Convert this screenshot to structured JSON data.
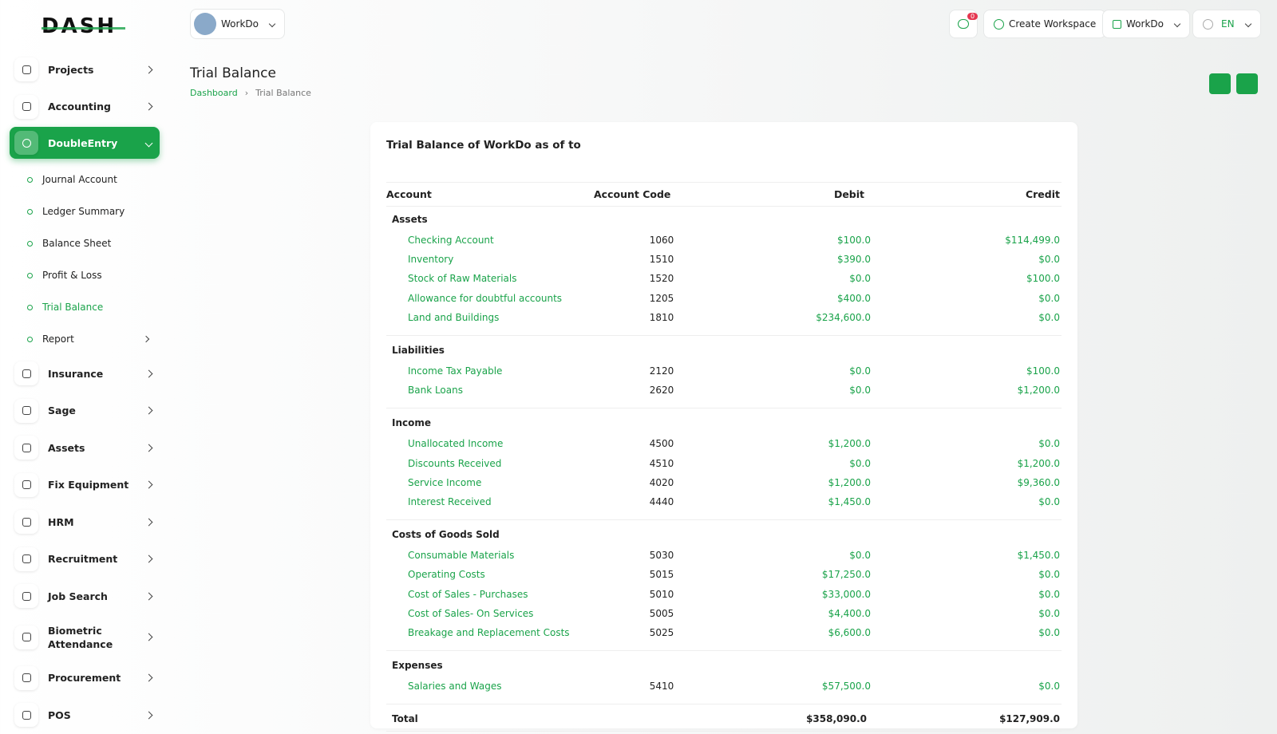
{
  "brand": "DASH",
  "header": {
    "workspace": "WorkDo",
    "notifications": "0",
    "create_workspace": "Create Workspace",
    "user": "WorkDo",
    "language": "EN"
  },
  "sidebar": {
    "items": [
      {
        "label": "Projects"
      },
      {
        "label": "Accounting"
      },
      {
        "label": "DoubleEntry",
        "children": [
          "Journal Account",
          "Ledger Summary",
          "Balance Sheet",
          "Profit & Loss",
          "Trial Balance",
          "Report"
        ]
      },
      {
        "label": "Insurance"
      },
      {
        "label": "Sage"
      },
      {
        "label": "Assets"
      },
      {
        "label": "Fix Equipment"
      },
      {
        "label": "HRM"
      },
      {
        "label": "Recruitment"
      },
      {
        "label": "Job Search"
      },
      {
        "label": "Biometric Attendance"
      },
      {
        "label": "Procurement"
      },
      {
        "label": "POS"
      }
    ]
  },
  "page": {
    "title": "Trial Balance",
    "breadcrumb": [
      "Dashboard",
      "Trial Balance"
    ]
  },
  "card": {
    "title": "Trial Balance of WorkDo as of to",
    "table": {
      "headers": [
        "Account",
        "Account Code",
        "Debit",
        "Credit"
      ],
      "groups": [
        {
          "name": "Assets",
          "rows": [
            [
              "Checking Account",
              "1060",
              "$100.0",
              "$114,499.0"
            ],
            [
              "Inventory",
              "1510",
              "$390.0",
              "$0.0"
            ],
            [
              "Stock of Raw Materials",
              "1520",
              "$0.0",
              "$100.0"
            ],
            [
              "Allowance for doubtful accounts",
              "1205",
              "$400.0",
              "$0.0"
            ],
            [
              "Land and Buildings",
              "1810",
              "$234,600.0",
              "$0.0"
            ]
          ]
        },
        {
          "name": "Liabilities",
          "rows": [
            [
              "Income Tax Payable",
              "2120",
              "$0.0",
              "$100.0"
            ],
            [
              "Bank Loans",
              "2620",
              "$0.0",
              "$1,200.0"
            ]
          ]
        },
        {
          "name": "Income",
          "rows": [
            [
              "Unallocated Income",
              "4500",
              "$1,200.0",
              "$0.0"
            ],
            [
              "Discounts Received",
              "4510",
              "$0.0",
              "$1,200.0"
            ],
            [
              "Service Income",
              "4020",
              "$1,200.0",
              "$9,360.0"
            ],
            [
              "Interest Received",
              "4440",
              "$1,450.0",
              "$0.0"
            ]
          ]
        },
        {
          "name": "Costs of Goods Sold",
          "rows": [
            [
              "Consumable Materials",
              "5030",
              "$0.0",
              "$1,450.0"
            ],
            [
              "Operating Costs",
              "5015",
              "$17,250.0",
              "$0.0"
            ],
            [
              "Cost of Sales - Purchases",
              "5010",
              "$33,000.0",
              "$0.0"
            ],
            [
              "Cost of Sales- On Services",
              "5005",
              "$4,400.0",
              "$0.0"
            ],
            [
              "Breakage and Replacement Costs",
              "5025",
              "$6,600.0",
              "$0.0"
            ]
          ]
        },
        {
          "name": "Expenses",
          "rows": [
            [
              "Salaries and Wages",
              "5410",
              "$57,500.0",
              "$0.0"
            ]
          ]
        }
      ],
      "total": [
        "Total",
        "$358,090.0",
        "$127,909.0"
      ]
    }
  }
}
